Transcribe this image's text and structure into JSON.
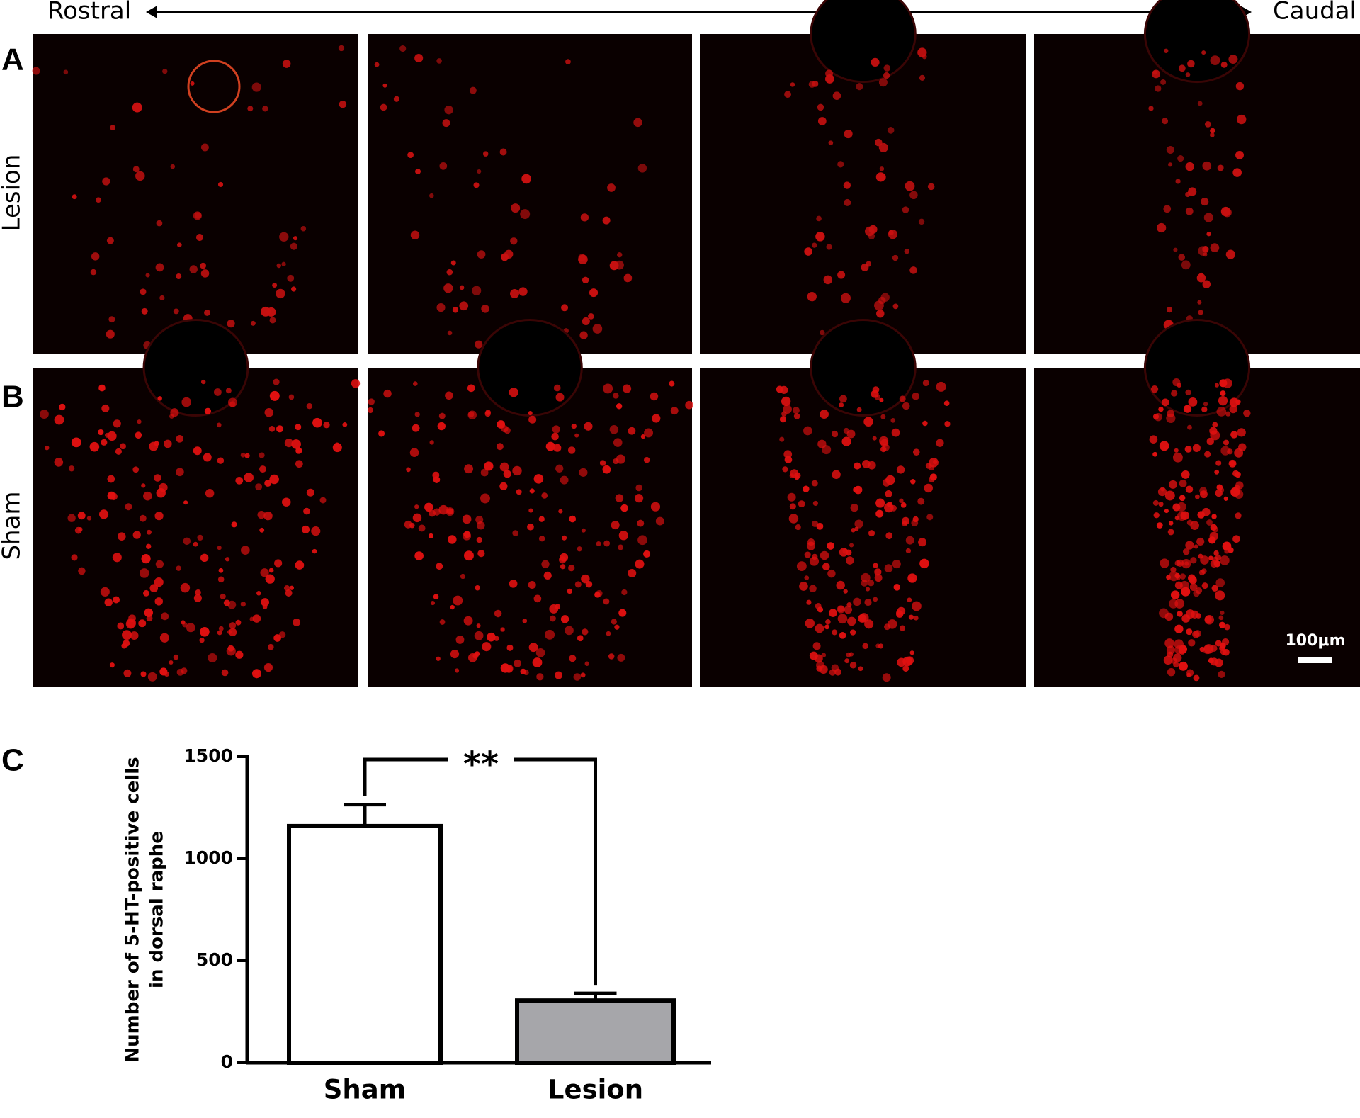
{
  "header": {
    "left": "Rostral",
    "right": "Caudal"
  },
  "panels": {
    "a": {
      "label": "A",
      "row_label": "Lesion"
    },
    "b": {
      "label": "B",
      "row_label": "Sham",
      "scale_bar": "100μm"
    },
    "c": {
      "label": "C"
    }
  },
  "chart_data": {
    "type": "bar",
    "y_label": [
      "Number of 5-HT-positive cells",
      "in dorsal raphe"
    ],
    "categories": [
      "Sham",
      "Lesion"
    ],
    "values": [
      1160,
      305
    ],
    "errors": [
      105,
      35
    ],
    "colors": [
      "#ffffff",
      "#a6a6aa"
    ],
    "ylim": [
      0,
      1500
    ],
    "yticks": [
      0,
      500,
      1000,
      1500
    ],
    "annotation": "**"
  }
}
